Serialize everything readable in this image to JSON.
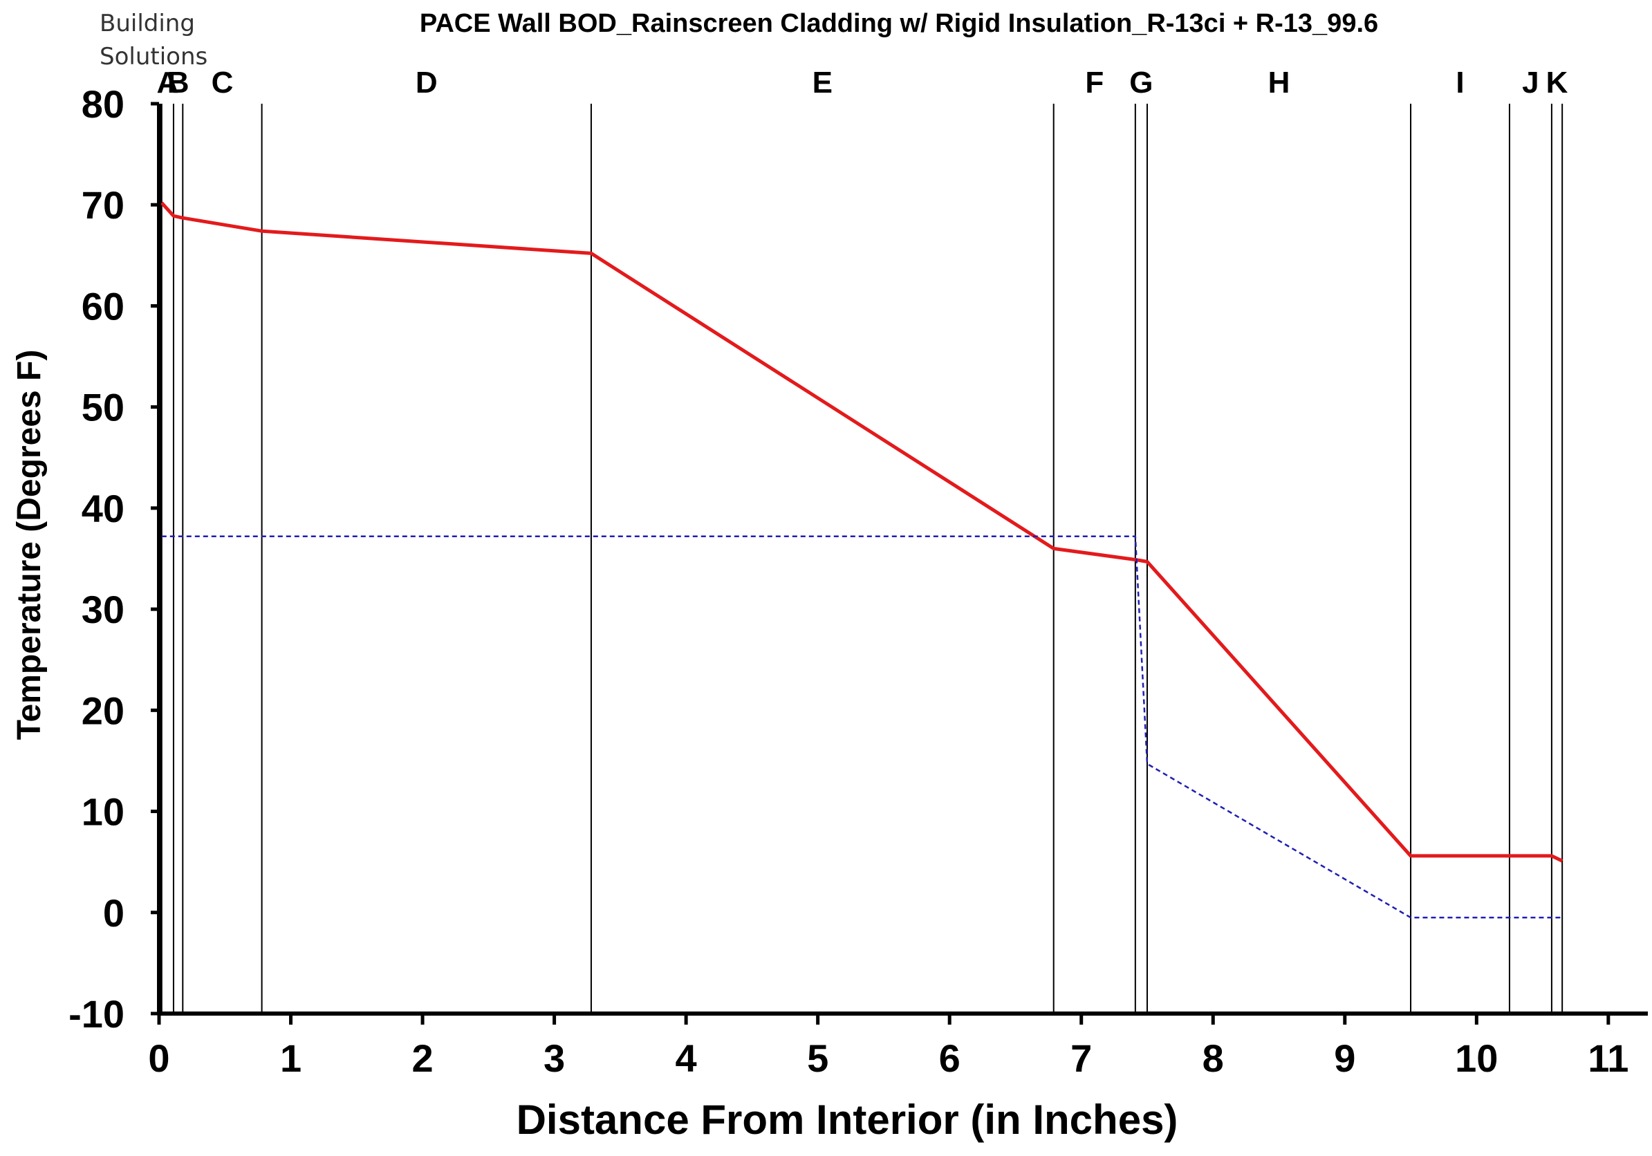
{
  "brand": {
    "line1": "Building",
    "line2": "Solutions"
  },
  "chart_data": {
    "type": "line",
    "title": "PACE Wall BOD_Rainscreen Cladding w/ Rigid Insulation_R-13ci + R-13_99.6",
    "xlabel": "Distance From Interior (in Inches)",
    "ylabel": "Temperature (Degrees F)",
    "xlim": [
      0,
      11.3
    ],
    "ylim": [
      -10,
      80
    ],
    "xticks": [
      "0",
      "1",
      "2",
      "3",
      "4",
      "5",
      "6",
      "7",
      "8",
      "9",
      "10",
      "11"
    ],
    "yticks": [
      "80",
      "70",
      "60",
      "50",
      "40",
      "30",
      "20",
      "10",
      "0",
      "-10"
    ],
    "layers": [
      {
        "label": "A",
        "x": 0.02
      },
      {
        "label": "B",
        "x": 0.11
      },
      {
        "label": "C",
        "x": 0.18
      },
      {
        "label": "D",
        "x": 0.78
      },
      {
        "label": "E",
        "x": 3.28
      },
      {
        "label": "F",
        "x": 6.79
      },
      {
        "label": "G",
        "x": 7.41
      },
      {
        "label": "H",
        "x": 7.5
      },
      {
        "label": "I",
        "x": 9.5
      },
      {
        "label": "J",
        "x": 10.25
      },
      {
        "label": "K",
        "x": 10.57
      }
    ],
    "layer_end": 10.65,
    "series": [
      {
        "color": "#e31a1c",
        "style": "solid",
        "x": [
          0.02,
          0.11,
          0.18,
          0.78,
          3.28,
          6.79,
          7.41,
          7.5,
          9.5,
          10.57,
          10.65
        ],
        "y": [
          70.2,
          68.9,
          68.7,
          67.4,
          65.2,
          36.0,
          34.9,
          34.7,
          5.6,
          5.6,
          5.1
        ]
      },
      {
        "color": "#1f1fb4",
        "style": "dashed",
        "x": [
          0.02,
          7.41,
          7.5,
          9.5,
          10.65
        ],
        "y": [
          37.2,
          37.2,
          14.7,
          -0.5,
          -0.5
        ]
      }
    ]
  }
}
